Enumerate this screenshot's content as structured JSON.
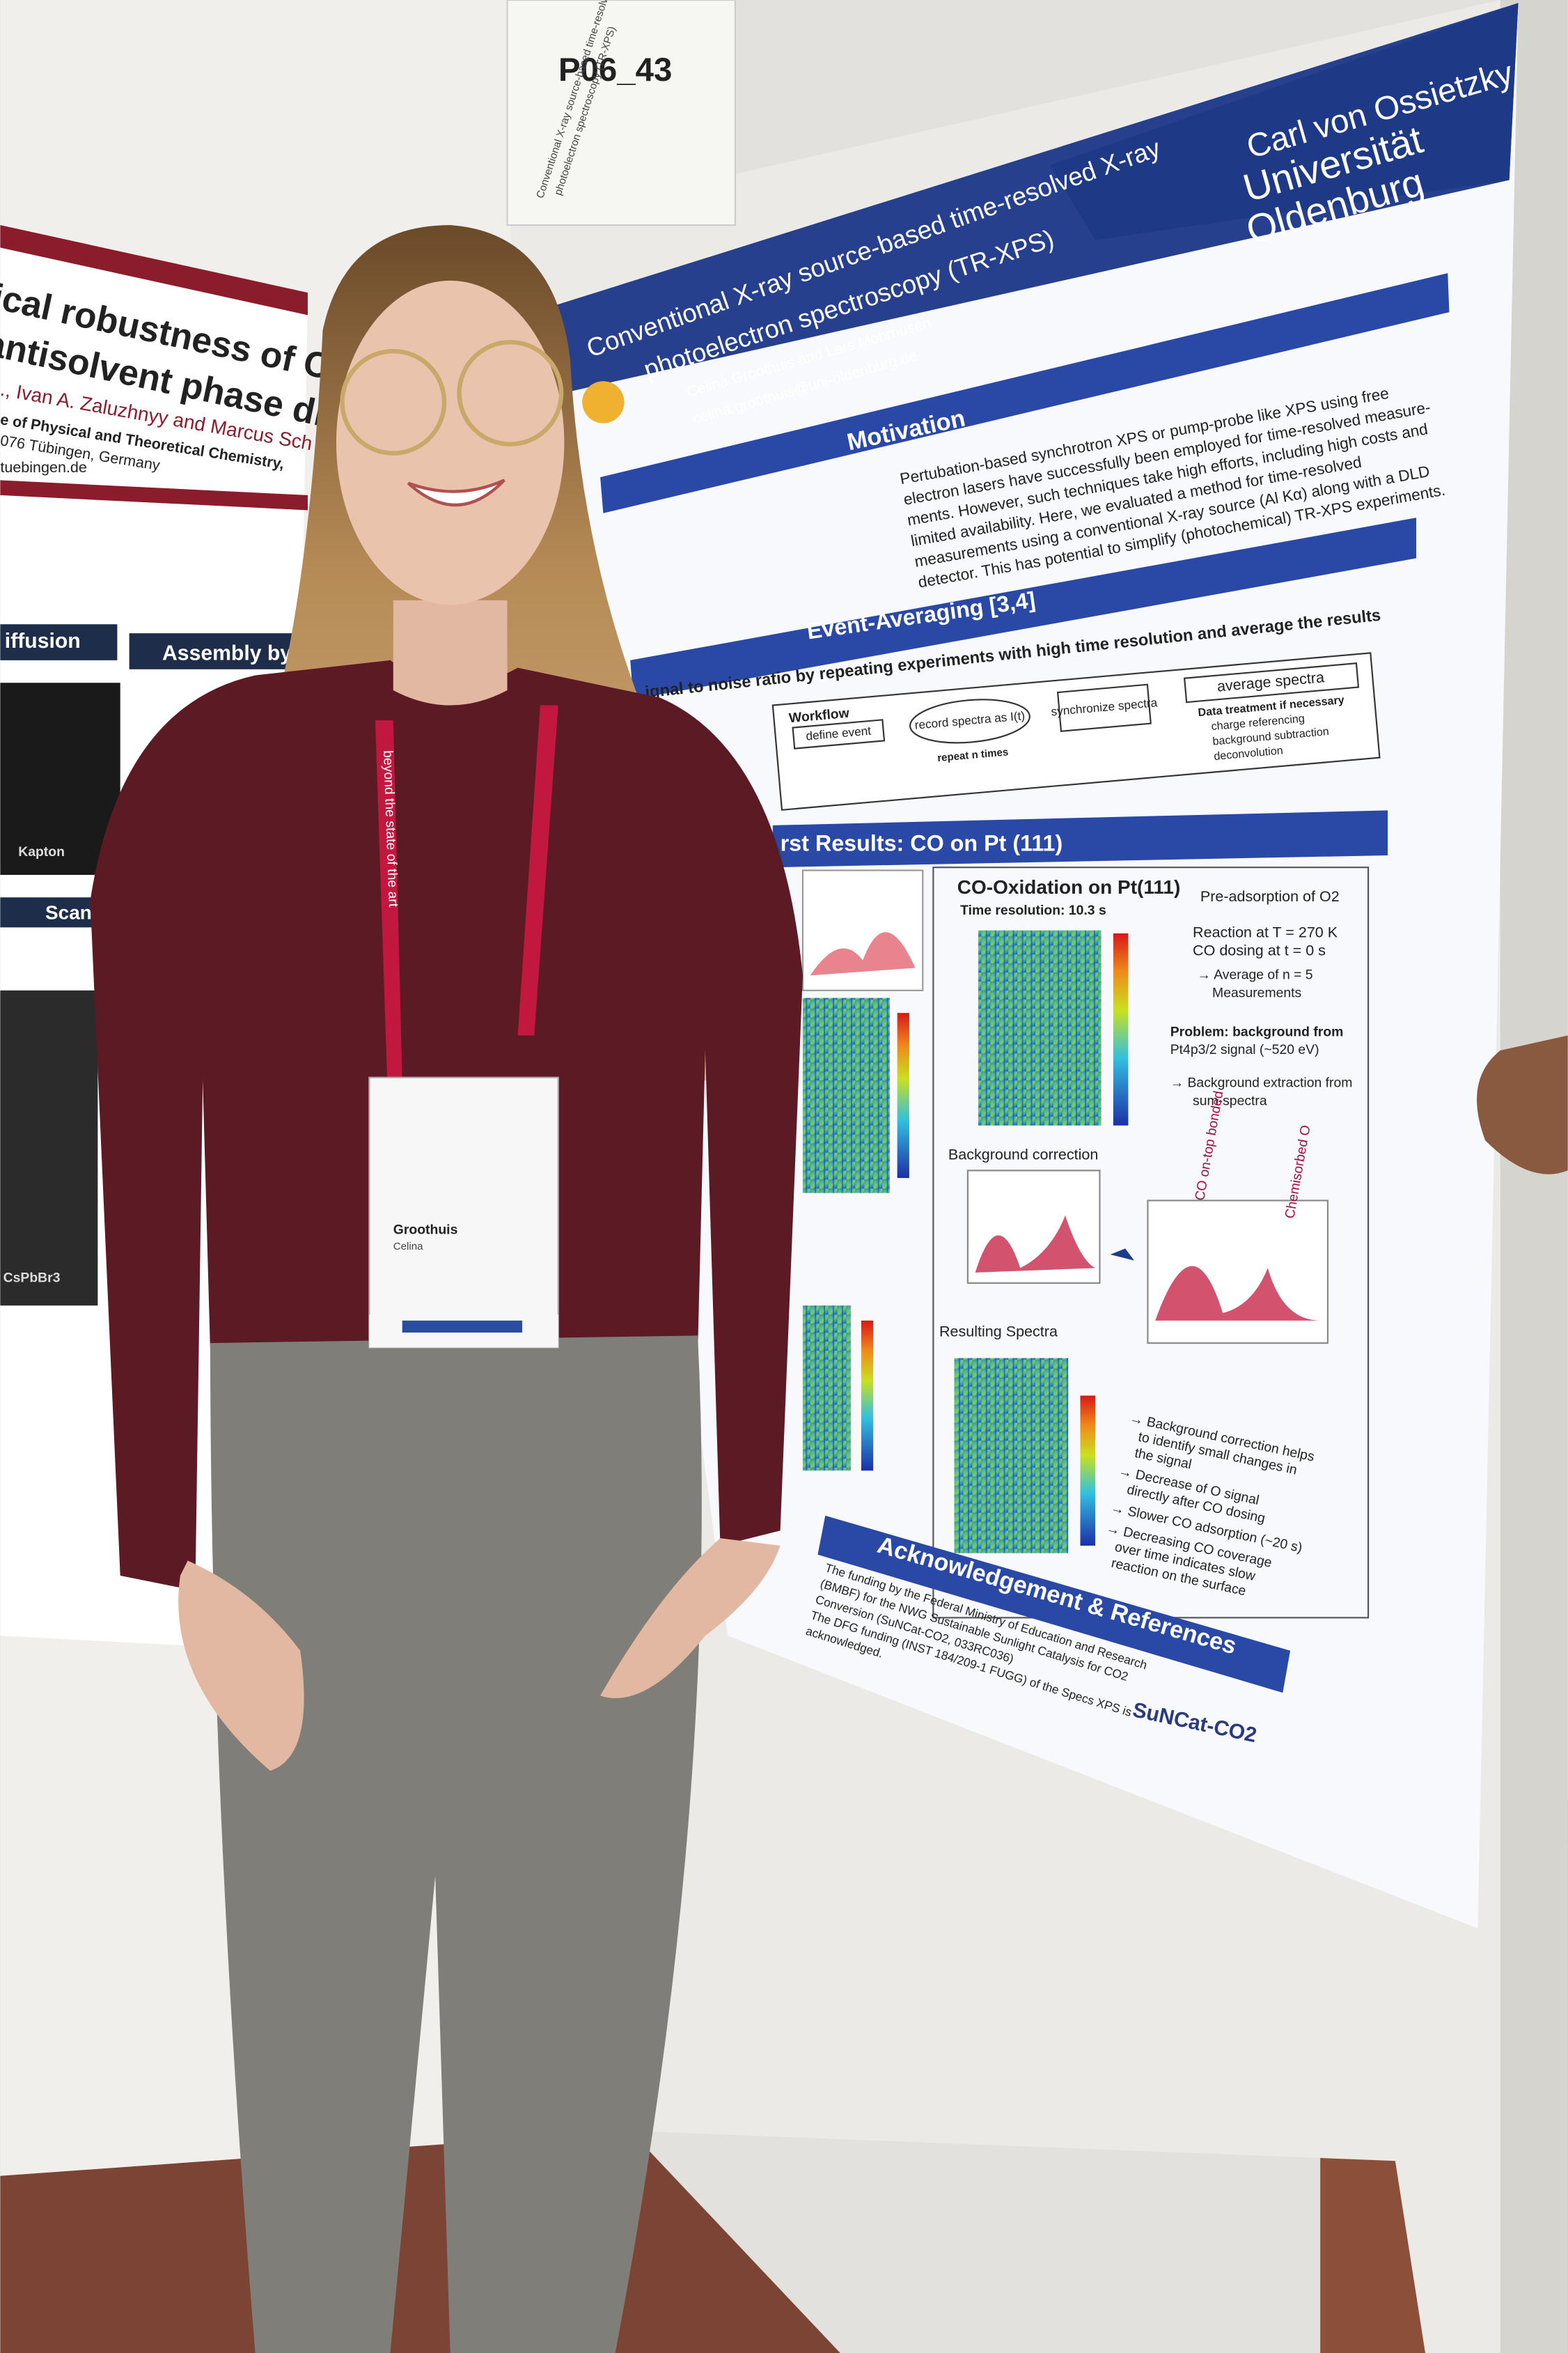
{
  "sign": {
    "label": "P06_43",
    "caption": [
      "Conventional X-ray source-based time-resolved X-ray",
      "photoelectron spectroscopy (TR-XPS)"
    ]
  },
  "left_poster": {
    "title": [
      "nical robustness of CsP",
      "antisolvent phase diffus"
    ],
    "authors": "., Ivan A. Zaluzhnyy and Marcus Sch",
    "affiliation": [
      "e of Physical and Theoretical Chemistry,",
      "076 Tübingen, Germany"
    ],
    "email": "tuebingen.de",
    "sections": [
      "iffusion",
      "Assembly by E",
      "Scan"
    ],
    "labels": [
      "Kapton",
      "CsPbBr3"
    ]
  },
  "poster": {
    "university": [
      "Carl von Ossietzky",
      "Universität",
      "Oldenburg"
    ],
    "title": [
      "Conventional X-ray source-based time-resolved X-ray",
      "photoelectron spectroscopy (TR-XPS)"
    ],
    "authors": "Celina Groothuis and Lars Mohrhusen",
    "email": "celina.groothuis@uni-oldenburg.de",
    "motivation": {
      "header": "Motivation",
      "lines": [
        "Pertubation-based synchrotron XPS or pump-probe like XPS using free",
        "electron lasers have successfully been employed for time-resolved measure-",
        "ments. However, such techniques take high efforts, including high costs and",
        "limited availability. Here, we evaluated a method for time-resolved",
        "measurements using a conventional X-ray source (Al Kα) along with a DLD",
        "detector. This has potential to simplify (photochemical) TR-XPS experiments."
      ]
    },
    "event_averaging": {
      "header": "Event-Averaging [3,4]",
      "intro": "ignal to noise ratio by repeating experiments with high time resolution and average the results",
      "workflow": "Workflow",
      "steps": [
        "define event",
        "record spectra as I(t)",
        "synchronize spectra",
        "average spectra"
      ],
      "repeat": "repeat n times",
      "treatment": "Data treatment if necessary",
      "treatment_items": [
        "charge referencing",
        "background subtraction",
        "deconvolution"
      ]
    },
    "results": {
      "header": "rst Results: CO on Pt (111)",
      "panel_title": "CO-Oxidation on Pt(111)",
      "time_resolution": "Time resolution: 10.3 s",
      "conditions": [
        "Pre-adsorption of O2",
        "Reaction at T = 270 K",
        "CO dosing at t = 0 s",
        "→ Average of n = 5",
        "Measurements",
        "Problem: background from",
        "Pt4p3/2 signal (~520 eV)",
        "→ Background extraction from",
        "sum-spectra"
      ],
      "background": "Background correction",
      "resulting": "Resulting Spectra",
      "peaks": [
        "CO on-top bonded",
        "Chemisorbed O"
      ],
      "notes": [
        "→ Background correction helps",
        "to identify small changes in",
        "the signal",
        "→ Decrease of O signal",
        "directly after CO dosing",
        "→ Slower CO adsorption (~20 s)",
        "→ Decreasing CO coverage",
        "over time indicates slow",
        "reaction on the surface"
      ]
    },
    "acknowledgement": {
      "header": "Acknowledgement & References",
      "lines": [
        "The funding by the Federal Ministry of Education and Research",
        "(BMBF) for the NWG Sustainable Sunlight Catalysis for CO2",
        "Conversion (SuNCat-CO2, 033RC036)",
        "The DFG funding (INST 184/209-1 FUGG) of the Specs XPS is",
        "acknowledged."
      ],
      "logo": "SuNCat-CO2"
    }
  },
  "badge": {
    "surname": "Groothuis",
    "first_name": "Celina",
    "lanyard": "beyond the state of the art"
  }
}
